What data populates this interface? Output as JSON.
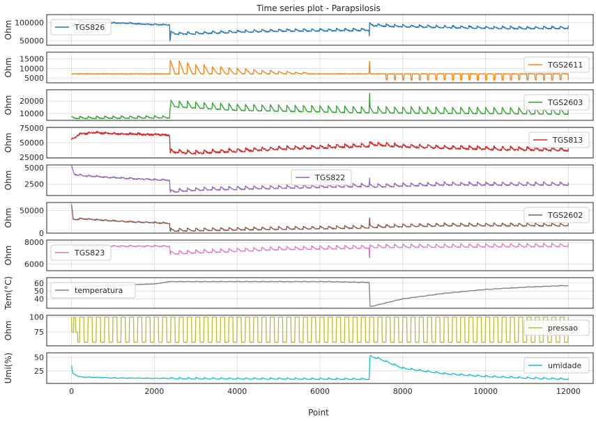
{
  "chart_data": {
    "type": "line",
    "title": "Time series plot - Parapsilosis",
    "xlabel": "Point",
    "xlim": [
      -600,
      12600
    ],
    "xticks": [
      0,
      2000,
      4000,
      6000,
      8000,
      10000,
      12000
    ],
    "grid": true,
    "panels": [
      {
        "series": "TGS826",
        "ylabel": "Ohm",
        "color": "#1f77b4",
        "ylim": [
          38000,
          122000
        ],
        "yticks": [
          50000,
          100000
        ],
        "legend": "left",
        "points": [
          [
            0,
            93000
          ],
          [
            100,
            88000
          ],
          [
            200,
            105000
          ],
          [
            400,
            103000
          ],
          [
            800,
            101000
          ],
          [
            1200,
            99000
          ],
          [
            1600,
            97000
          ],
          [
            2000,
            95000
          ],
          [
            2370,
            94000
          ],
          [
            2375,
            48000
          ],
          [
            2400,
            72000
          ],
          [
            2600,
            70000
          ],
          [
            3000,
            71000
          ],
          [
            4000,
            75000
          ],
          [
            5000,
            78000
          ],
          [
            6000,
            79000
          ],
          [
            7000,
            80000
          ],
          [
            7190,
            81000
          ],
          [
            7195,
            40000
          ],
          [
            7200,
            95000
          ],
          [
            7300,
            93000
          ],
          [
            8000,
            90000
          ],
          [
            9000,
            88000
          ],
          [
            10000,
            86000
          ],
          [
            11000,
            85000
          ],
          [
            12000,
            86000
          ]
        ],
        "amp": 6000,
        "period": 200,
        "noise": 1500
      },
      {
        "series": "TGS2611",
        "ylabel": "Ohm",
        "color": "#ff7f0e",
        "ylim": [
          2500,
          18500
        ],
        "yticks": [
          5000,
          10000,
          15000
        ],
        "legend": "right",
        "points": [
          [
            0,
            7200
          ],
          [
            2370,
            7200
          ],
          [
            2380,
            7200
          ],
          [
            7190,
            7200
          ],
          [
            7195,
            17000
          ],
          [
            7210,
            7200
          ],
          [
            12000,
            7200
          ]
        ],
        "spikes": [
          [
            2380,
            2380,
            14500
          ],
          [
            2600,
            2600,
            14000
          ],
          [
            2800,
            2800,
            13000
          ],
          [
            3000,
            3000,
            12000
          ],
          [
            3200,
            3200,
            12000
          ],
          [
            3400,
            3400,
            11000
          ],
          [
            3600,
            3600,
            11000
          ],
          [
            3800,
            3800,
            10500
          ],
          [
            4000,
            4000,
            10000
          ],
          [
            4200,
            4200,
            10000
          ],
          [
            4400,
            4400,
            9500
          ],
          [
            4600,
            4600,
            9000
          ],
          [
            4800,
            4800,
            9000
          ],
          [
            5000,
            5000,
            8500
          ],
          [
            5200,
            5200,
            8500
          ],
          [
            5400,
            5400,
            8000
          ],
          [
            5600,
            5600,
            8000
          ]
        ],
        "dips": [
          7600,
          12000,
          4000,
          200
        ],
        "amp": 0,
        "period": 200,
        "noise": 150
      },
      {
        "series": "TGS2603",
        "ylabel": "Ohm",
        "color": "#2ca02c",
        "ylim": [
          4500,
          29000
        ],
        "yticks": [
          10000,
          20000
        ],
        "legend": "right",
        "points": [
          [
            0,
            6500
          ],
          [
            2370,
            7000
          ],
          [
            2380,
            17000
          ],
          [
            4000,
            14000
          ],
          [
            7190,
            12000
          ],
          [
            7195,
            28000
          ],
          [
            7210,
            12000
          ],
          [
            12000,
            11000
          ]
        ],
        "amp": 5000,
        "period": 200,
        "noise": 300
      },
      {
        "series": "TGS813",
        "ylabel": "Ohm",
        "color": "#d62728",
        "ylim": [
          24000,
          76000
        ],
        "yticks": [
          25000,
          50000,
          75000
        ],
        "legend": "right",
        "points": [
          [
            0,
            55000
          ],
          [
            200,
            65000
          ],
          [
            600,
            67000
          ],
          [
            1200,
            65000
          ],
          [
            2000,
            64000
          ],
          [
            2370,
            63000
          ],
          [
            2380,
            35000
          ],
          [
            3000,
            33000
          ],
          [
            5000,
            40000
          ],
          [
            7190,
            45000
          ],
          [
            7200,
            48000
          ],
          [
            8000,
            44000
          ],
          [
            10000,
            40000
          ],
          [
            12000,
            38000
          ]
        ],
        "amp": 5000,
        "period": 200,
        "noise": 1500
      },
      {
        "series": "TGS822",
        "ylabel": "Ohm",
        "color": "#9467bd",
        "ylim": [
          800,
          5400
        ],
        "yticks": [
          2500,
          5000
        ],
        "legend": "center",
        "points": [
          [
            0,
            5200
          ],
          [
            60,
            4000
          ],
          [
            300,
            3800
          ],
          [
            1000,
            3500
          ],
          [
            2000,
            3200
          ],
          [
            2370,
            3100
          ],
          [
            2380,
            1400
          ],
          [
            3000,
            1700
          ],
          [
            5000,
            2000
          ],
          [
            7190,
            2300
          ],
          [
            7195,
            3500
          ],
          [
            7210,
            2200
          ],
          [
            9000,
            2500
          ],
          [
            12000,
            2500
          ]
        ],
        "amp": 450,
        "period": 200,
        "noise": 80
      },
      {
        "series": "TGS2602",
        "ylabel": "Ohm",
        "color": "#8c564b",
        "ylim": [
          0,
          68000
        ],
        "yticks": [
          0,
          50000
        ],
        "legend": "right",
        "points": [
          [
            0,
            62000
          ],
          [
            40,
            30000
          ],
          [
            300,
            32000
          ],
          [
            1200,
            26000
          ],
          [
            2370,
            22000
          ],
          [
            2380,
            6000
          ],
          [
            3000,
            7000
          ],
          [
            5000,
            10000
          ],
          [
            7190,
            13000
          ],
          [
            7195,
            38000
          ],
          [
            7210,
            14000
          ],
          [
            9000,
            18000
          ],
          [
            12000,
            18000
          ]
        ],
        "amp": 6000,
        "period": 200,
        "noise": 1000
      },
      {
        "series": "TGS823",
        "ylabel": "Ohm",
        "color": "#e377c2",
        "ylim": [
          5400,
          8200
        ],
        "yticks": [
          6000,
          8000
        ],
        "legend": "left",
        "points": [
          [
            0,
            7650
          ],
          [
            2370,
            7650
          ],
          [
            2380,
            7000
          ],
          [
            3000,
            7100
          ],
          [
            5000,
            7400
          ],
          [
            7190,
            7550
          ],
          [
            7195,
            5800
          ],
          [
            7210,
            7600
          ],
          [
            12000,
            7700
          ]
        ],
        "amp": 300,
        "period": 200,
        "noise": 30
      },
      {
        "series": "temperatura",
        "ylabel": "Tem(°C)",
        "color": "#7f7f7f",
        "ylim": [
          28,
          67
        ],
        "yticks": [
          40,
          50,
          60
        ],
        "legend": "left",
        "points": [
          [
            0,
            55
          ],
          [
            1000,
            57
          ],
          [
            2000,
            59
          ],
          [
            2380,
            62
          ],
          [
            4000,
            62
          ],
          [
            6000,
            62
          ],
          [
            7190,
            61
          ],
          [
            7210,
            30
          ],
          [
            8000,
            40
          ],
          [
            9000,
            47
          ],
          [
            10000,
            52
          ],
          [
            11000,
            55
          ],
          [
            12000,
            57
          ]
        ],
        "amp": 0.5,
        "period": 200,
        "noise": 0.2
      },
      {
        "series": "pressao",
        "ylabel": "Ohm",
        "color": "#bcbd22",
        "ylim": [
          52,
          103
        ],
        "yticks": [
          75,
          100
        ],
        "legend": "right",
        "square": [
          [
            0,
            75
          ],
          [
            100,
            100
          ],
          [
            150,
            100
          ],
          [
            200,
            58
          ]
        ],
        "points": [
          [
            0,
            80
          ],
          [
            12000,
            80
          ]
        ],
        "amp": 0,
        "period": 200,
        "noise": 0
      },
      {
        "series": "umidade",
        "ylabel": "Umi(%)",
        "color": "#17becf",
        "ylim": [
          2,
          58
        ],
        "yticks": [
          25,
          50
        ],
        "legend": "right",
        "points": [
          [
            0,
            34
          ],
          [
            30,
            20
          ],
          [
            200,
            14
          ],
          [
            1000,
            12
          ],
          [
            3000,
            11
          ],
          [
            7190,
            10
          ],
          [
            7210,
            52
          ],
          [
            7400,
            48
          ],
          [
            8000,
            30
          ],
          [
            9000,
            20
          ],
          [
            10000,
            15
          ],
          [
            11000,
            12
          ],
          [
            12000,
            10
          ]
        ],
        "amp": 2.5,
        "period": 200,
        "noise": 0.3
      }
    ]
  }
}
